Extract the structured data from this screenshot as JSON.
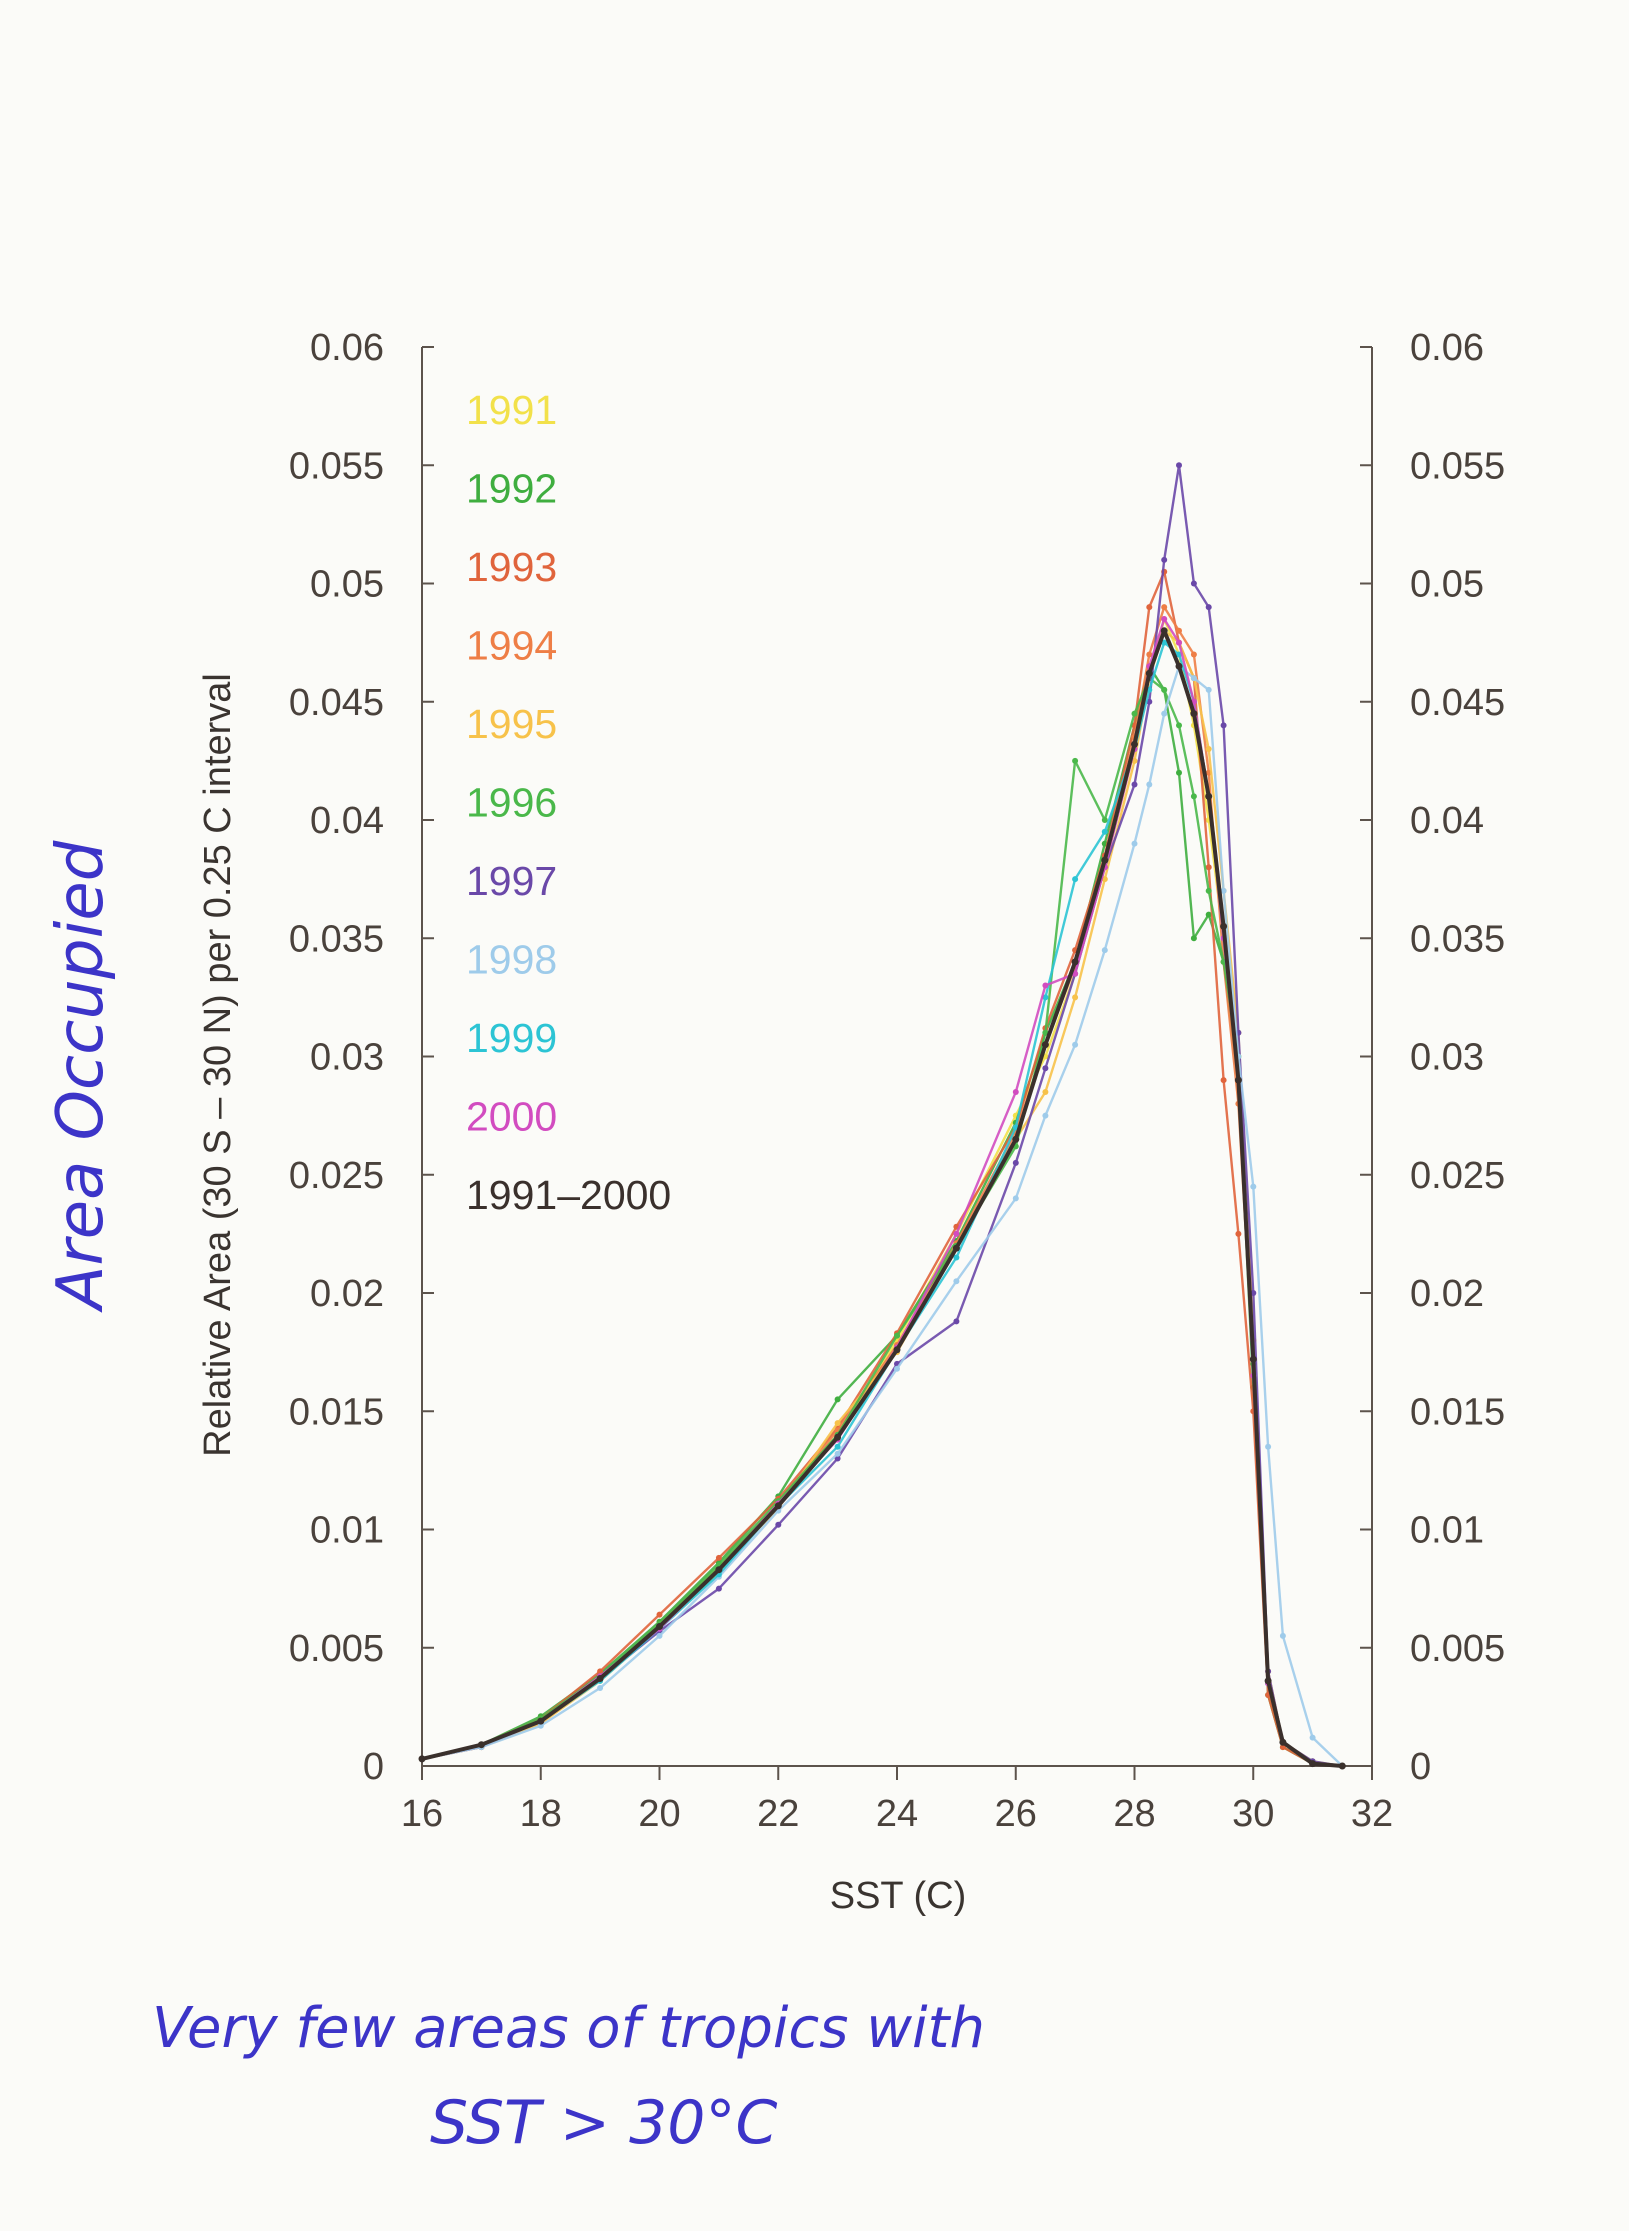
{
  "chart_data": {
    "type": "line",
    "xlabel": "SST (C)",
    "ylabel": "Relative Area (30 S – 30 N) per 0.25 C interval",
    "xlim": [
      16,
      32
    ],
    "ylim": [
      0,
      0.06
    ],
    "xticks": [
      "16",
      "18",
      "20",
      "22",
      "24",
      "26",
      "28",
      "30",
      "32"
    ],
    "yticks": [
      "0",
      "0.005",
      "0.01",
      "0.015",
      "0.02",
      "0.025",
      "0.03",
      "0.035",
      "0.04",
      "0.045",
      "0.05",
      "0.055",
      "0.06"
    ],
    "grid": false,
    "legend_position": "top-left",
    "series": [
      {
        "name": "1991",
        "color": "#f2e14a",
        "x": [
          16,
          17,
          18,
          19,
          20,
          21,
          22,
          23,
          24,
          25,
          26,
          26.5,
          27,
          27.5,
          28,
          28.25,
          28.5,
          28.75,
          29,
          29.25,
          29.5,
          29.75,
          30,
          30.25,
          30.5,
          31,
          31.5
        ],
        "y": [
          0.0003,
          0.0009,
          0.0019,
          0.0037,
          0.0058,
          0.0082,
          0.0112,
          0.014,
          0.018,
          0.0225,
          0.0275,
          0.03,
          0.0335,
          0.038,
          0.043,
          0.046,
          0.0485,
          0.047,
          0.044,
          0.04,
          0.035,
          0.03,
          0.018,
          0.004,
          0.001,
          0.0002,
          0
        ]
      },
      {
        "name": "1992",
        "color": "#3fae3f",
        "x": [
          16,
          17,
          18,
          19,
          20,
          21,
          22,
          23,
          24,
          25,
          26,
          26.5,
          27,
          27.5,
          28,
          28.25,
          28.5,
          28.75,
          29,
          29.25,
          29.5,
          29.75,
          30,
          30.25,
          30.5,
          31,
          31.5
        ],
        "y": [
          0.0003,
          0.0009,
          0.0021,
          0.0039,
          0.0061,
          0.0086,
          0.0114,
          0.0155,
          0.0182,
          0.0222,
          0.0272,
          0.031,
          0.034,
          0.039,
          0.044,
          0.0465,
          0.0455,
          0.042,
          0.035,
          0.036,
          0.034,
          0.029,
          0.016,
          0.003,
          0.0008,
          0.0001,
          0
        ]
      },
      {
        "name": "1993",
        "color": "#e0643c",
        "x": [
          16,
          17,
          18,
          19,
          20,
          21,
          22,
          23,
          24,
          25,
          26,
          26.5,
          27,
          27.5,
          28,
          28.25,
          28.5,
          28.75,
          29,
          29.25,
          29.5,
          29.75,
          30,
          30.25,
          30.5,
          31,
          31.5
        ],
        "y": [
          0.0003,
          0.0009,
          0.002,
          0.004,
          0.0064,
          0.0088,
          0.0113,
          0.0143,
          0.0183,
          0.0228,
          0.027,
          0.0312,
          0.0345,
          0.0385,
          0.044,
          0.049,
          0.0505,
          0.0475,
          0.046,
          0.038,
          0.029,
          0.0225,
          0.015,
          0.003,
          0.0008,
          0.0001,
          0
        ]
      },
      {
        "name": "1994",
        "color": "#ee7e46",
        "x": [
          16,
          17,
          18,
          19,
          20,
          21,
          22,
          23,
          24,
          25,
          26,
          26.5,
          27,
          27.5,
          28,
          28.25,
          28.5,
          28.75,
          29,
          29.25,
          29.5,
          29.75,
          30,
          30.25,
          30.5,
          31,
          31.5
        ],
        "y": [
          0.0003,
          0.0008,
          0.0019,
          0.0037,
          0.006,
          0.0084,
          0.0111,
          0.0142,
          0.0178,
          0.0221,
          0.0268,
          0.0305,
          0.0338,
          0.0383,
          0.0435,
          0.047,
          0.049,
          0.048,
          0.047,
          0.042,
          0.034,
          0.028,
          0.017,
          0.0035,
          0.001,
          0.0001,
          0
        ]
      },
      {
        "name": "1995",
        "color": "#f7c24a",
        "x": [
          16,
          17,
          18,
          19,
          20,
          21,
          22,
          23,
          24,
          25,
          26,
          26.5,
          27,
          27.5,
          28,
          28.25,
          28.5,
          28.75,
          29,
          29.25,
          29.5,
          29.75,
          30,
          30.25,
          30.5,
          31,
          31.5
        ],
        "y": [
          0.0003,
          0.0008,
          0.0018,
          0.0036,
          0.0058,
          0.0083,
          0.0109,
          0.0145,
          0.0175,
          0.0219,
          0.0265,
          0.0285,
          0.0325,
          0.0375,
          0.0425,
          0.046,
          0.048,
          0.0475,
          0.046,
          0.043,
          0.037,
          0.031,
          0.018,
          0.004,
          0.001,
          0.0001,
          0
        ]
      },
      {
        "name": "1996",
        "color": "#4ab84a",
        "x": [
          16,
          17,
          18,
          19,
          20,
          21,
          22,
          23,
          24,
          25,
          26,
          26.5,
          27,
          27.5,
          28,
          28.25,
          28.5,
          28.75,
          29,
          29.25,
          29.5,
          29.75,
          30,
          30.25,
          30.5,
          31,
          31.5
        ],
        "y": [
          0.0003,
          0.0009,
          0.002,
          0.0038,
          0.006,
          0.0085,
          0.0112,
          0.014,
          0.0182,
          0.022,
          0.0262,
          0.031,
          0.0425,
          0.04,
          0.0445,
          0.046,
          0.0455,
          0.044,
          0.041,
          0.037,
          0.034,
          0.03,
          0.017,
          0.0035,
          0.001,
          0.0001,
          0
        ]
      },
      {
        "name": "1997",
        "color": "#6a48a8",
        "x": [
          16,
          17,
          18,
          19,
          20,
          21,
          22,
          23,
          24,
          25,
          26,
          26.5,
          27,
          27.5,
          28,
          28.25,
          28.5,
          28.75,
          29,
          29.25,
          29.5,
          29.75,
          30,
          30.25,
          30.5,
          31,
          31.5
        ],
        "y": [
          0.0003,
          0.0008,
          0.0019,
          0.0037,
          0.0057,
          0.0075,
          0.0102,
          0.013,
          0.017,
          0.0188,
          0.0255,
          0.0295,
          0.0335,
          0.038,
          0.0415,
          0.045,
          0.051,
          0.055,
          0.05,
          0.049,
          0.044,
          0.031,
          0.02,
          0.004,
          0.001,
          0.0002,
          0
        ]
      },
      {
        "name": "1998",
        "color": "#9ecbea",
        "x": [
          16,
          17,
          18,
          19,
          20,
          21,
          22,
          23,
          24,
          25,
          26,
          26.5,
          27,
          27.5,
          28,
          28.25,
          28.5,
          28.75,
          29,
          29.25,
          29.5,
          29.75,
          30,
          30.25,
          30.5,
          31,
          31.5
        ],
        "y": [
          0.0003,
          0.0008,
          0.0017,
          0.0033,
          0.0055,
          0.008,
          0.0108,
          0.0132,
          0.0168,
          0.0205,
          0.024,
          0.0275,
          0.0305,
          0.0345,
          0.039,
          0.0415,
          0.0445,
          0.0465,
          0.046,
          0.0455,
          0.037,
          0.03,
          0.0245,
          0.0135,
          0.0055,
          0.0012,
          0
        ]
      },
      {
        "name": "1999",
        "color": "#2cc4d4",
        "x": [
          16,
          17,
          18,
          19,
          20,
          21,
          22,
          23,
          24,
          25,
          26,
          26.5,
          27,
          27.5,
          28,
          28.25,
          28.5,
          28.75,
          29,
          29.25,
          29.5,
          29.75,
          30,
          30.25,
          30.5,
          31,
          31.5
        ],
        "y": [
          0.0003,
          0.0009,
          0.0019,
          0.0036,
          0.0058,
          0.0081,
          0.011,
          0.0135,
          0.0176,
          0.0215,
          0.027,
          0.0325,
          0.0375,
          0.0395,
          0.043,
          0.0455,
          0.0475,
          0.047,
          0.045,
          0.041,
          0.035,
          0.029,
          0.0165,
          0.0035,
          0.001,
          0.0001,
          0
        ]
      },
      {
        "name": "2000",
        "color": "#d24cc0",
        "x": [
          16,
          17,
          18,
          19,
          20,
          21,
          22,
          23,
          24,
          25,
          26,
          26.5,
          27,
          27.5,
          28,
          28.25,
          28.5,
          28.75,
          29,
          29.25,
          29.5,
          29.75,
          30,
          30.25,
          30.5,
          31,
          31.5
        ],
        "y": [
          0.0003,
          0.0009,
          0.0019,
          0.0038,
          0.0058,
          0.0083,
          0.0111,
          0.0138,
          0.0177,
          0.0225,
          0.0285,
          0.033,
          0.0335,
          0.038,
          0.043,
          0.0465,
          0.0485,
          0.0475,
          0.045,
          0.041,
          0.035,
          0.029,
          0.0165,
          0.0035,
          0.001,
          0.0001,
          0
        ]
      },
      {
        "name": "1991–2000",
        "color": "#3a302c",
        "x": [
          16,
          17,
          18,
          19,
          20,
          21,
          22,
          23,
          24,
          25,
          26,
          26.5,
          27,
          27.5,
          28,
          28.25,
          28.5,
          28.75,
          29,
          29.25,
          29.5,
          29.75,
          30,
          30.25,
          30.5,
          31,
          31.5
        ],
        "y": [
          0.0003,
          0.0009,
          0.0019,
          0.0037,
          0.0059,
          0.0083,
          0.011,
          0.0139,
          0.0176,
          0.0219,
          0.0265,
          0.0305,
          0.034,
          0.0383,
          0.0432,
          0.0462,
          0.048,
          0.0465,
          0.0445,
          0.041,
          0.0355,
          0.029,
          0.0172,
          0.0036,
          0.001,
          0.0001,
          0
        ]
      }
    ]
  },
  "handwriting": {
    "left": "Area Occupied",
    "bottom_line1": "Very few areas of tropics with",
    "bottom_line2": "SST > 30°C"
  }
}
